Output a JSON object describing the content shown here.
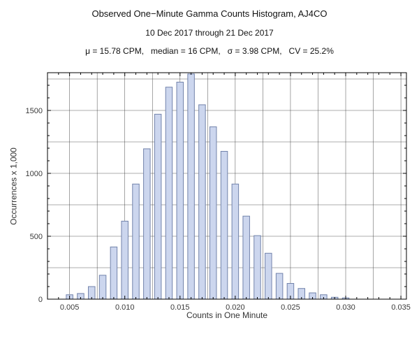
{
  "chart_data": {
    "type": "bar",
    "title": "Observed One−Minute Gamma Counts Histogram, AJ4CO",
    "subtitle": "10 Dec 2017 through 21 Dec 2017",
    "stats": "μ = 15.78 CPM,   median = 16 CPM,   σ = 3.98 CPM,   CV = 25.2%",
    "xlabel": "Counts in One Minute",
    "ylabel": "Occurrences x 1,000",
    "xlim": [
      0.003,
      0.0355
    ],
    "ylim": [
      0,
      1800
    ],
    "x_ticks": [
      0.005,
      0.01,
      0.015,
      0.02,
      0.025,
      0.03,
      0.035
    ],
    "x_tick_labels": [
      "0.005",
      "0.010",
      "0.015",
      "0.020",
      "0.025",
      "0.030",
      "0.035"
    ],
    "y_ticks": [
      0,
      500,
      1000,
      1500
    ],
    "y_tick_labels": [
      "0",
      "500",
      "1000",
      "1500"
    ],
    "x_grid": [
      0.005,
      0.0075,
      0.01,
      0.0125,
      0.015,
      0.0175,
      0.02,
      0.0225,
      0.025,
      0.0275,
      0.03,
      0.0325,
      0.035
    ],
    "y_grid": [
      250,
      500,
      750,
      1000,
      1250,
      1500,
      1750
    ],
    "x_minor_step": 0.001,
    "y_minor_step": 100,
    "grid_on": true,
    "legend": "none",
    "bin_centers": [
      0.005,
      0.006,
      0.007,
      0.008,
      0.009,
      0.01,
      0.011,
      0.012,
      0.013,
      0.014,
      0.015,
      0.016,
      0.017,
      0.018,
      0.019,
      0.02,
      0.021,
      0.022,
      0.023,
      0.024,
      0.025,
      0.026,
      0.027,
      0.028,
      0.029,
      0.03
    ],
    "counts": [
      35,
      45,
      100,
      190,
      415,
      620,
      915,
      1195,
      1470,
      1685,
      1725,
      1790,
      1545,
      1370,
      1175,
      915,
      660,
      505,
      365,
      205,
      125,
      85,
      50,
      35,
      15,
      10
    ],
    "bar_width": 0.0006,
    "colors": {
      "bar_fill": "#ccd6ee",
      "bar_stroke": "#7283ab",
      "grid": "#3f3f3f",
      "frame": "#000000",
      "text": "#3a3a3a"
    }
  }
}
